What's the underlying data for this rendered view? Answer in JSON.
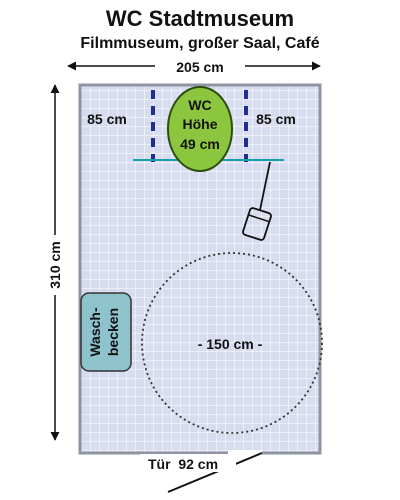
{
  "title": "WC Stadtmuseum",
  "subtitle": "Filmmuseum, großer Saal, Café",
  "dimensions": {
    "width": "205 cm",
    "depth": "310 cm",
    "side_left": "85 cm",
    "side_right": "85 cm",
    "turning_circle": "- 150 cm -",
    "door": "Tür  92 cm"
  },
  "toilet": {
    "line1": "WC",
    "line2": "Höhe",
    "line3": "49 cm"
  },
  "sink": {
    "line1": "Wasch-",
    "line2": "becken"
  },
  "colors": {
    "grid_background": "#d8dcef",
    "grid_line": "#ffffff",
    "wall": "#8f94a3",
    "toilet_fill": "#8cc63f",
    "sink_fill": "#8fc3cc",
    "grab_bar": "#1f2f8f",
    "flush_line": "#1aa0a8"
  }
}
